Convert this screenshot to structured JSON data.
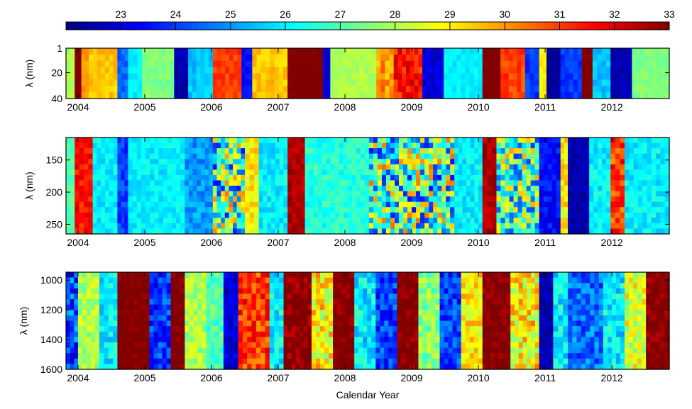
{
  "chart_data": {
    "type": "heatmap",
    "xlabel": "Calendar Year",
    "colorbar": {
      "range": [
        22,
        33
      ],
      "ticks": [
        23,
        24,
        25,
        26,
        27,
        28,
        29,
        30,
        31,
        32,
        33
      ],
      "tick_labels": [
        "23",
        "24",
        "25",
        "26",
        "27",
        "28",
        "29",
        "30",
        "31",
        "32",
        "33"
      ],
      "colormap": "jet"
    },
    "xlim": [
      2003.82,
      2012.86
    ],
    "xticks": [
      2004,
      2005,
      2006,
      2007,
      2008,
      2009,
      2010,
      2011,
      2012
    ],
    "xtick_labels": [
      "2004",
      "2005",
      "2006",
      "2007",
      "2008",
      "2009",
      "2010",
      "2011",
      "2012"
    ],
    "panels": [
      {
        "ylabel": "λ (nm)",
        "ylim": [
          1,
          40
        ],
        "yticks": [
          1,
          20,
          40
        ],
        "ytick_labels": [
          "1",
          "20",
          "40"
        ],
        "segments": [
          [
            2003.82,
            2003.95,
            28,
            0.3
          ],
          [
            2003.95,
            2004.05,
            33,
            0.2
          ],
          [
            2004.05,
            2004.16,
            30,
            0.3
          ],
          [
            2004.16,
            2004.59,
            29.5,
            0.4
          ],
          [
            2004.59,
            2004.75,
            24.5,
            0.4
          ],
          [
            2004.75,
            2004.96,
            26,
            0.3
          ],
          [
            2004.96,
            2005.44,
            27.5,
            0.3
          ],
          [
            2005.44,
            2005.65,
            22.5,
            0.3
          ],
          [
            2005.65,
            2006.02,
            25.5,
            0.4
          ],
          [
            2006.02,
            2006.45,
            31,
            0.4
          ],
          [
            2006.45,
            2006.61,
            23.5,
            0.3
          ],
          [
            2006.61,
            2007.14,
            29.5,
            0.4
          ],
          [
            2007.14,
            2007.67,
            33,
            0.1
          ],
          [
            2007.67,
            2007.78,
            23,
            0.3
          ],
          [
            2007.78,
            2008.47,
            28,
            0.3
          ],
          [
            2008.47,
            2008.73,
            30,
            0.8
          ],
          [
            2008.73,
            2009.16,
            31.5,
            0.8
          ],
          [
            2009.16,
            2009.48,
            23,
            0.5
          ],
          [
            2009.48,
            2010.06,
            26,
            0.3
          ],
          [
            2010.06,
            2010.33,
            33,
            0.1
          ],
          [
            2010.33,
            2010.7,
            31,
            0.5
          ],
          [
            2010.7,
            2010.91,
            24,
            0.4
          ],
          [
            2010.91,
            2011.02,
            29,
            0.3
          ],
          [
            2011.02,
            2011.23,
            22.3,
            0.2
          ],
          [
            2011.23,
            2011.55,
            24,
            0.4
          ],
          [
            2011.55,
            2011.71,
            33,
            0.2
          ],
          [
            2011.71,
            2011.98,
            25.5,
            0.4
          ],
          [
            2011.98,
            2012.3,
            22.5,
            0.3
          ],
          [
            2012.3,
            2012.86,
            27.5,
            0.3
          ]
        ]
      },
      {
        "ylabel": "λ (nm)",
        "ylim": [
          115,
          265
        ],
        "yticks": [
          150,
          200,
          250
        ],
        "ytick_labels": [
          "150",
          "200",
          "250"
        ],
        "segments": [
          [
            2003.82,
            2003.95,
            27,
            0.4
          ],
          [
            2003.95,
            2004.22,
            31.5,
            0.6
          ],
          [
            2004.22,
            2004.59,
            26,
            0.5
          ],
          [
            2004.59,
            2004.75,
            24,
            0.6
          ],
          [
            2004.75,
            2005.6,
            26,
            0.5
          ],
          [
            2005.6,
            2006.02,
            25,
            0.6
          ],
          [
            2006.02,
            2006.5,
            27,
            3.5
          ],
          [
            2006.5,
            2006.71,
            29,
            0.8
          ],
          [
            2006.71,
            2007.14,
            26,
            0.6
          ],
          [
            2007.14,
            2007.4,
            32.5,
            0.4
          ],
          [
            2007.4,
            2008.36,
            26.5,
            0.6
          ],
          [
            2008.36,
            2009.64,
            27,
            3.5
          ],
          [
            2009.64,
            2010.06,
            26,
            0.6
          ],
          [
            2010.06,
            2010.27,
            32.5,
            0.5
          ],
          [
            2010.27,
            2010.91,
            27,
            3.0
          ],
          [
            2010.91,
            2011.23,
            23.5,
            0.6
          ],
          [
            2011.23,
            2011.34,
            29,
            0.8
          ],
          [
            2011.34,
            2011.66,
            22.5,
            0.4
          ],
          [
            2011.66,
            2011.98,
            26,
            0.6
          ],
          [
            2011.98,
            2012.19,
            31,
            1.0
          ],
          [
            2012.19,
            2012.86,
            26,
            0.6
          ]
        ]
      },
      {
        "ylabel": "λ (nm)",
        "ylim": [
          947,
          1600
        ],
        "yticks": [
          1000,
          1200,
          1400,
          1600
        ],
        "ytick_labels": [
          "1000",
          "1200",
          "1400",
          "1600"
        ],
        "segments": [
          [
            2003.82,
            2004.0,
            24,
            1.5
          ],
          [
            2004.0,
            2004.32,
            28,
            0.8
          ],
          [
            2004.32,
            2004.59,
            26,
            0.8
          ],
          [
            2004.59,
            2005.07,
            33,
            0.3
          ],
          [
            2005.07,
            2005.39,
            24,
            1.0
          ],
          [
            2005.39,
            2005.6,
            33,
            0.4
          ],
          [
            2005.6,
            2005.92,
            28,
            0.8
          ],
          [
            2005.92,
            2006.18,
            27,
            0.8
          ],
          [
            2006.18,
            2006.4,
            23,
            0.6
          ],
          [
            2006.4,
            2006.87,
            31,
            1.0
          ],
          [
            2006.87,
            2007.08,
            26,
            1.0
          ],
          [
            2007.08,
            2007.5,
            33,
            0.8
          ],
          [
            2007.5,
            2007.82,
            29,
            1.5
          ],
          [
            2007.82,
            2008.14,
            33,
            0.6
          ],
          [
            2008.14,
            2008.46,
            26,
            1.0
          ],
          [
            2008.46,
            2008.78,
            24,
            1.0
          ],
          [
            2008.78,
            2009.1,
            33,
            0.6
          ],
          [
            2009.1,
            2009.42,
            27.5,
            1.0
          ],
          [
            2009.42,
            2009.74,
            24,
            1.0
          ],
          [
            2009.74,
            2010.06,
            29,
            1.0
          ],
          [
            2010.06,
            2010.48,
            33,
            0.5
          ],
          [
            2010.48,
            2010.91,
            29,
            1.5
          ],
          [
            2010.91,
            2011.12,
            22.5,
            0.4
          ],
          [
            2011.12,
            2011.34,
            26,
            1.0
          ],
          [
            2011.34,
            2011.87,
            24.5,
            1.0
          ],
          [
            2011.87,
            2012.19,
            26,
            1.0
          ],
          [
            2012.19,
            2012.51,
            28.5,
            1.2
          ],
          [
            2012.51,
            2012.86,
            33,
            0.6
          ]
        ]
      }
    ]
  }
}
